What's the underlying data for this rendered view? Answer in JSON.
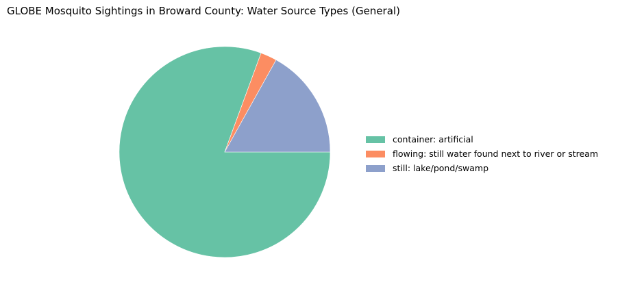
{
  "chart_data": {
    "type": "pie",
    "title": "GLOBE Mosquito Sightings in Broward County: Water Source Types (General)",
    "legend_position": "right",
    "start_angle_deg": 0,
    "direction": "clockwise-from-3-oclock",
    "slices": [
      {
        "label": "container: artificial",
        "value": 80.6,
        "color": "#66c2a5"
      },
      {
        "label": "flowing: still water found next to river or stream",
        "value": 2.5,
        "color": "#fc8d62"
      },
      {
        "label": "still: lake/pond/swamp",
        "value": 16.9,
        "color": "#8da0cb"
      }
    ]
  }
}
